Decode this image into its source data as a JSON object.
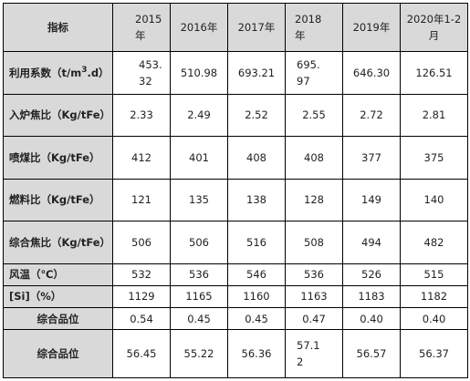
{
  "table": {
    "header": {
      "label": "指标",
      "years": [
        "2015年",
        "2016年",
        "2017年",
        "2018年",
        "2019年",
        "2020年1-2月"
      ]
    },
    "rows": [
      {
        "name": "利用系数（t/m3.d）",
        "name_parts": [
          "利用系数（t/m",
          "3",
          ".d）"
        ],
        "values": [
          "453.32",
          "510.98",
          "693.21",
          "695.97",
          "646.30",
          "126.51"
        ]
      },
      {
        "name": "入炉焦比（Kg/tFe）",
        "values": [
          "2.33",
          "2.49",
          "2.52",
          "2.55",
          "2.72",
          "2.81"
        ]
      },
      {
        "name": "喷煤比（Kg/tFe）",
        "values": [
          "412",
          "401",
          "408",
          "408",
          "377",
          "375"
        ]
      },
      {
        "name": "燃料比（Kg/tFe）",
        "values": [
          "121",
          "135",
          "138",
          "128",
          "149",
          "140"
        ]
      },
      {
        "name": "综合焦比（Kg/tFe）",
        "values": [
          "506",
          "506",
          "516",
          "508",
          "494",
          "482"
        ]
      },
      {
        "name": "风温（℃）",
        "values": [
          "532",
          "536",
          "546",
          "536",
          "526",
          "515"
        ]
      },
      {
        "name": "[Si]（%）",
        "values": [
          "1129",
          "1165",
          "1160",
          "1163",
          "1183",
          "1182"
        ]
      },
      {
        "name": "综合品位",
        "values": [
          "0.54",
          "0.45",
          "0.45",
          "0.47",
          "0.40",
          "0.40"
        ]
      },
      {
        "name": "综合品位",
        "values": [
          "56.45",
          "55.22",
          "56.36",
          "57.12",
          "56.57",
          "56.37"
        ]
      }
    ]
  }
}
